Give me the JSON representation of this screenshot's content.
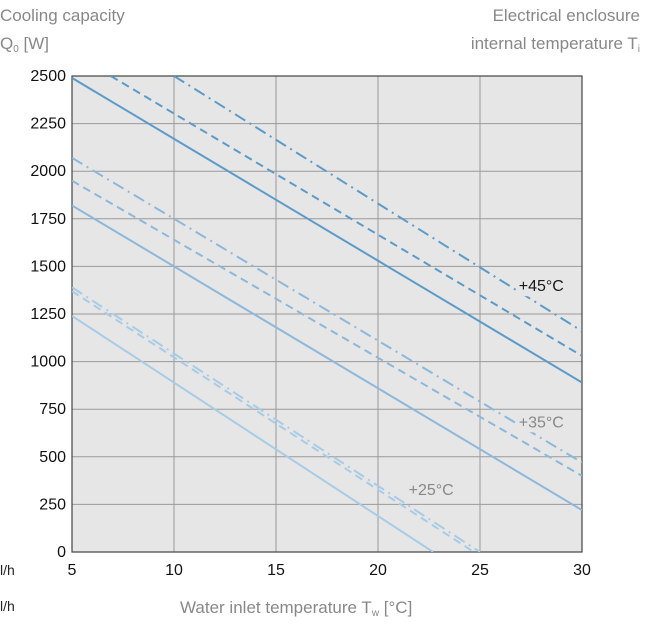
{
  "header": {
    "ylabel_line1": "Cooling capacity",
    "ylabel_line2": "Q",
    "ylabel_sub": "0",
    "ylabel_unit": " [W]",
    "rlabel_line1": "Electrical enclosure",
    "rlabel_line2": "internal temperature T",
    "rlabel_sub": "i"
  },
  "footer": {
    "xlabel": "Water inlet temperature T",
    "xlabel_sub": "w",
    "xlabel_unit": " [°C]",
    "side_label_1": "l/h",
    "side_label_2": "l/h"
  },
  "chart_data": {
    "type": "line",
    "xlabel": "Water inlet temperature Tw [°C]",
    "ylabel": "Cooling capacity Q0 [W]",
    "xlim": [
      5,
      30
    ],
    "ylim": [
      0,
      2500
    ],
    "x_ticks": [
      "5",
      "10",
      "15",
      "20",
      "25",
      "30"
    ],
    "y_ticks": [
      "0",
      "250",
      "500",
      "750",
      "1000",
      "1250",
      "1500",
      "1750",
      "2000",
      "2250",
      "2500"
    ],
    "grid": true,
    "annotations": [
      {
        "text": "+45°C",
        "x": 26.9,
        "y": 1370,
        "color": "#1a1a1a"
      },
      {
        "text": "+35°C",
        "x": 26.9,
        "y": 655,
        "color": "#888888"
      },
      {
        "text": "+25°C",
        "x": 21.5,
        "y": 300,
        "color": "#888888"
      }
    ],
    "series": [
      {
        "group": "+45°C",
        "style": "solid",
        "color": "#5b9bc9",
        "x": [
          5,
          30
        ],
        "y": [
          2490,
          890
        ]
      },
      {
        "group": "+45°C",
        "style": "dashed",
        "color": "#5b9bc9",
        "x": [
          6.9,
          30
        ],
        "y": [
          2500,
          1030
        ]
      },
      {
        "group": "+45°C",
        "style": "dashdot",
        "color": "#5b9bc9",
        "x": [
          10,
          30
        ],
        "y": [
          2500,
          1160
        ]
      },
      {
        "group": "+35°C",
        "style": "solid",
        "color": "#8cb8dc",
        "x": [
          5,
          30
        ],
        "y": [
          1820,
          220
        ]
      },
      {
        "group": "+35°C",
        "style": "dashed",
        "color": "#8cb8dc",
        "x": [
          5,
          30
        ],
        "y": [
          1950,
          400
        ]
      },
      {
        "group": "+35°C",
        "style": "dashdot",
        "color": "#8cb8dc",
        "x": [
          5,
          30
        ],
        "y": [
          2070,
          470
        ]
      },
      {
        "group": "+25°C",
        "style": "solid",
        "color": "#a8cbe6",
        "x": [
          5,
          22.7
        ],
        "y": [
          1240,
          0
        ]
      },
      {
        "group": "+25°C",
        "style": "dashed",
        "color": "#a8cbe6",
        "x": [
          5,
          24.7
        ],
        "y": [
          1370,
          0
        ]
      },
      {
        "group": "+25°C",
        "style": "dashdot",
        "color": "#a8cbe6",
        "x": [
          5,
          25
        ],
        "y": [
          1390,
          0
        ]
      }
    ]
  }
}
